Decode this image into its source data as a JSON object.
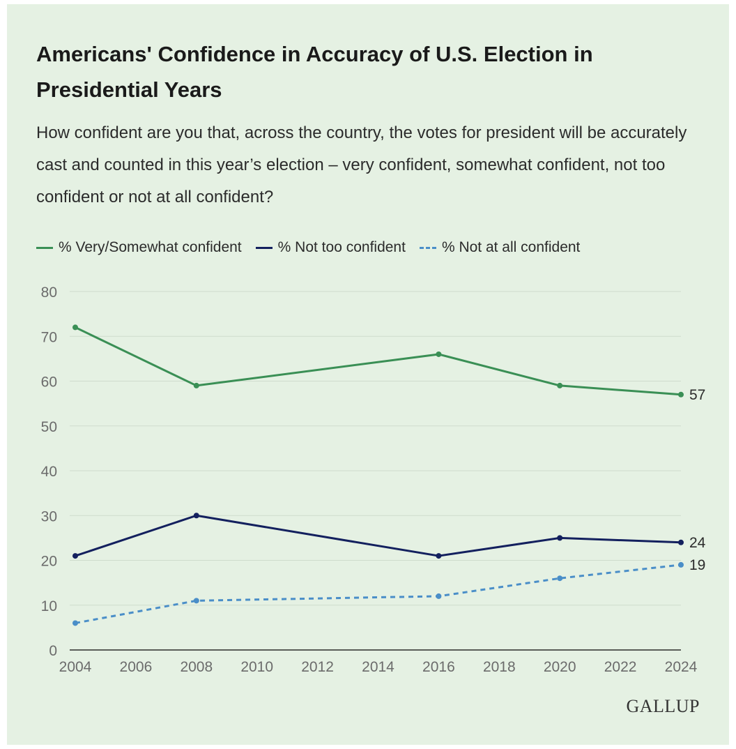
{
  "title": "Americans' Confidence in Accuracy of U.S. Election in Presidential Years",
  "subtitle": "How confident are you that, across the country, the votes for president will be accurately cast and counted in this year’s election – very confident, somewhat confident, not too confident or not at all confident?",
  "logo_text": "GALLUP",
  "colors": {
    "background": "#e5f1e3",
    "grid": "#cfdccd",
    "axis": "#2b2b2b",
    "tick_text": "#6b6b6b"
  },
  "chart_data": {
    "type": "line",
    "x": [
      2004,
      2008,
      2016,
      2020,
      2024
    ],
    "xticks": [
      "2004",
      "2006",
      "2008",
      "2010",
      "2012",
      "2014",
      "2016",
      "2018",
      "2020",
      "2022",
      "2024"
    ],
    "yticks": [
      "0",
      "10",
      "20",
      "30",
      "40",
      "50",
      "60",
      "70",
      "80"
    ],
    "xlim": [
      2004,
      2024
    ],
    "ylim": [
      0,
      80
    ],
    "grid": true,
    "legend_position": "top-left",
    "series": [
      {
        "name": "% Very/Somewhat confident",
        "values": [
          72,
          59,
          66,
          59,
          57
        ],
        "color": "#3a8f55",
        "dashed": false,
        "end_label": "57"
      },
      {
        "name": "% Not too confident",
        "values": [
          21,
          30,
          21,
          25,
          24
        ],
        "color": "#13205e",
        "dashed": false,
        "end_label": "24"
      },
      {
        "name": "% Not at all confident",
        "values": [
          6,
          11,
          12,
          16,
          19
        ],
        "color": "#4a8ec8",
        "dashed": true,
        "end_label": "19"
      }
    ]
  }
}
